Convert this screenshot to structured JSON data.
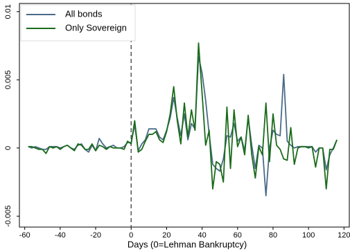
{
  "chart_data": {
    "type": "line",
    "xlabel": "Days (0=Lehman Bankruptcy)",
    "x": [
      -58,
      -56,
      -54,
      -52,
      -50,
      -48,
      -46,
      -44,
      -42,
      -40,
      -38,
      -36,
      -34,
      -32,
      -30,
      -28,
      -26,
      -24,
      -22,
      -20,
      -18,
      -16,
      -14,
      -12,
      -10,
      -8,
      -6,
      -4,
      -2,
      0,
      2,
      4,
      6,
      8,
      10,
      12,
      14,
      16,
      18,
      20,
      22,
      24,
      26,
      28,
      30,
      32,
      34,
      36,
      38,
      40,
      42,
      44,
      46,
      48,
      50,
      52,
      54,
      56,
      58,
      60,
      62,
      64,
      66,
      68,
      70,
      72,
      74,
      76,
      78,
      80,
      82,
      84,
      86,
      88,
      90,
      92,
      94,
      96,
      98,
      100,
      102,
      104,
      106,
      108,
      110,
      112,
      114,
      116
    ],
    "series": [
      {
        "name": "All bonds",
        "color": "#4a6b87",
        "values": [
          0.0001,
          0,
          0.0001,
          0,
          -0.0001,
          -0.0001,
          0.0001,
          0.0001,
          0.0001,
          0,
          0.0001,
          0.0002,
          0,
          -0.0001,
          0.0002,
          0.0003,
          -0.0001,
          -0.0003,
          0.0002,
          -0.0002,
          0.0007,
          0.0003,
          0,
          0.0001,
          0.0002,
          0,
          0,
          0.0001,
          0.0004,
          0.0004,
          0.0017,
          -0.0002,
          0.0003,
          0.0006,
          0.0014,
          0.0014,
          0.0014,
          0.0008,
          0.0006,
          0.0013,
          0.0022,
          0.0037,
          0.0022,
          0.0009,
          0.0025,
          0.0006,
          0.0018,
          0.0014,
          0.0067,
          0.0055,
          0.0035,
          0.001,
          -0.0012,
          -0.0015,
          -0.0017,
          -0.0008,
          0.0009,
          0.0008,
          0.0018,
          0.0005,
          0.0008,
          -0.0002,
          0.0022,
          0.0002,
          -0.0015,
          0.0002,
          0,
          -0.0035,
          0,
          0.0013,
          0.001,
          0.0009,
          0.0054,
          0.0005,
          0.0002,
          0,
          0.0001,
          0.0001,
          0.0001,
          0.0001,
          0.0001,
          -0.0003,
          0,
          0,
          -0.0016,
          -0.0005,
          0,
          0.0006
        ]
      },
      {
        "name": "Only Sovereign",
        "color": "#1a6b1a",
        "values": [
          0.0001,
          0.0001,
          0,
          -0.0001,
          -0.0001,
          -0.0004,
          0.0001,
          0,
          0.0001,
          -0.0001,
          0.0001,
          0.0002,
          0,
          -0.0002,
          0.0003,
          0.0002,
          -0.0001,
          -0.0001,
          0.0003,
          -0.0002,
          0.0002,
          0.0001,
          -0.0001,
          0.0001,
          0,
          0,
          0,
          -0.0001,
          0.0005,
          0.0003,
          0.002,
          -0.0003,
          -0.0001,
          0.0005,
          0.001,
          0.001,
          0.0012,
          0.0006,
          0.0004,
          0.0012,
          0.0025,
          0.0045,
          0.002,
          0.0003,
          0.0033,
          0.0008,
          0.0028,
          0.0013,
          0.0077,
          0.004,
          0.0002,
          0.0013,
          -0.003,
          -0.001,
          -0.0012,
          -0.0025,
          0.003,
          -0.0015,
          0.0028,
          0.0001,
          0.0008,
          -0.0005,
          0.0024,
          -0.0005,
          -0.0022,
          0.0001,
          -0.0005,
          0.0033,
          -0.001,
          0.0025,
          0.0002,
          -0.0001,
          -0.0008,
          -0.0009,
          0.0015,
          -0.0012,
          0,
          0.0001,
          0.0001,
          0,
          0.0001,
          -0.0014,
          0,
          0,
          -0.003,
          -0.0001,
          -0.0001,
          0.0006
        ]
      }
    ],
    "xlim": [
      -63,
      123
    ],
    "xticks": [
      -60,
      -40,
      -20,
      0,
      20,
      40,
      60,
      80,
      100,
      120
    ],
    "ylim": [
      -0.0058,
      0.0106
    ],
    "yticks": [
      -0.005,
      0,
      0.005,
      0.01
    ],
    "vline": 0,
    "legend": "top-left"
  }
}
